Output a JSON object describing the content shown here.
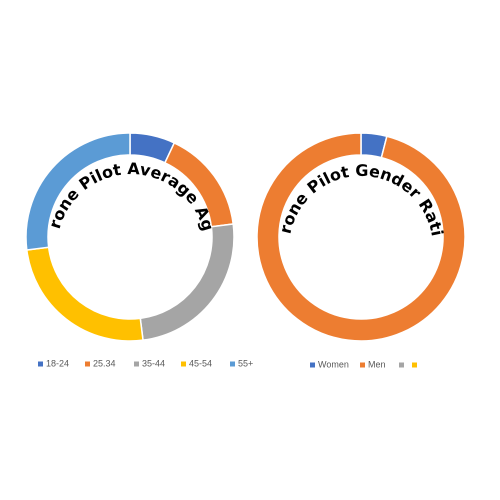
{
  "chart_data": [
    {
      "type": "donut",
      "title": "Drone Pilot Average Age",
      "categories": [
        "18-24",
        "25.34",
        "35-44",
        "45-54",
        "55+"
      ],
      "values": [
        7,
        16,
        25,
        25,
        27
      ],
      "colors": [
        "#4472c4",
        "#ed7d31",
        "#a5a5a5",
        "#ffc000",
        "#5b9bd5"
      ]
    },
    {
      "type": "donut",
      "title": "Drone Pilot Gender Ratio",
      "categories": [
        "Women",
        "Men",
        null,
        null
      ],
      "values": [
        4,
        96,
        0,
        0
      ],
      "colors": [
        "#4472c4",
        "#ed7d31",
        "#a5a5a5",
        "#ffc000"
      ]
    }
  ]
}
